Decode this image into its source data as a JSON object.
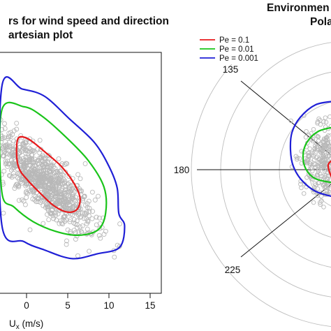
{
  "chart_data": [
    {
      "type": "scatter",
      "title_lines": [
        "rs for wind speed and direction",
        "artesian plot"
      ],
      "xlabel": "U",
      "xlabel_sub": "x",
      "xlabel_unit": " (m/s)",
      "xticks": [
        0,
        5,
        10,
        15
      ],
      "xlim": [
        -3,
        16
      ],
      "ylim": [
        -15,
        15
      ],
      "grid": false,
      "scatter_color": "#b8b8b8",
      "contours": [
        {
          "label": "Pe = 0.1",
          "color": "#e8191b",
          "points": [
            [
              -1.0,
              4.8
            ],
            [
              0.2,
              4.7
            ],
            [
              2.2,
              3.1
            ],
            [
              4.3,
              1.2
            ],
            [
              5.8,
              -0.9
            ],
            [
              6.5,
              -2.7
            ],
            [
              6.1,
              -4.1
            ],
            [
              4.9,
              -4.4
            ],
            [
              3.3,
              -3.6
            ],
            [
              1.7,
              -2.1
            ],
            [
              0.1,
              -0.4
            ],
            [
              -0.9,
              1.0
            ],
            [
              -1.2,
              2.8
            ]
          ]
        },
        {
          "label": "Pe = 0.01",
          "color": "#1ac41a",
          "points": [
            [
              -3.0,
              8.3
            ],
            [
              -0.3,
              8.7
            ],
            [
              1.8,
              7.6
            ],
            [
              4.5,
              5.2
            ],
            [
              7.5,
              2.0
            ],
            [
              9.4,
              -1.3
            ],
            [
              9.6,
              -4.5
            ],
            [
              8.7,
              -6.6
            ],
            [
              6.3,
              -7.3
            ],
            [
              3.5,
              -6.8
            ],
            [
              0.8,
              -5.6
            ],
            [
              -1.5,
              -3.8
            ],
            [
              -3.0,
              -1.9
            ]
          ]
        },
        {
          "label": "Pe = 0.001",
          "color": "#1f1fd6",
          "points": [
            [
              -3.0,
              11.2
            ],
            [
              -0.5,
              10.9
            ],
            [
              2.2,
              10.0
            ],
            [
              5.2,
              7.2
            ],
            [
              8.2,
              4.3
            ],
            [
              10.0,
              1.3
            ],
            [
              11.0,
              -1.4
            ],
            [
              11.2,
              -4.6
            ],
            [
              11.9,
              -6.1
            ],
            [
              11.3,
              -8.8
            ],
            [
              8.6,
              -9.6
            ],
            [
              5.5,
              -10.2
            ],
            [
              2.1,
              -9.1
            ],
            [
              -0.3,
              -8.1
            ],
            [
              -3.0,
              -6.0
            ]
          ]
        }
      ]
    },
    {
      "type": "polar",
      "title_lines": [
        "Environmen",
        "Pola"
      ],
      "angle_labels": [
        "135",
        "180",
        "225"
      ],
      "legend_placement": "top-left",
      "legend": [
        {
          "label": "Pe = 0.1",
          "color": "#e8191b"
        },
        {
          "label": "Pe = 0.01",
          "color": "#1ac41a"
        },
        {
          "label": "Pe = 0.001",
          "color": "#1f1fd6"
        }
      ],
      "scatter_color": "#b8b8b8"
    }
  ]
}
